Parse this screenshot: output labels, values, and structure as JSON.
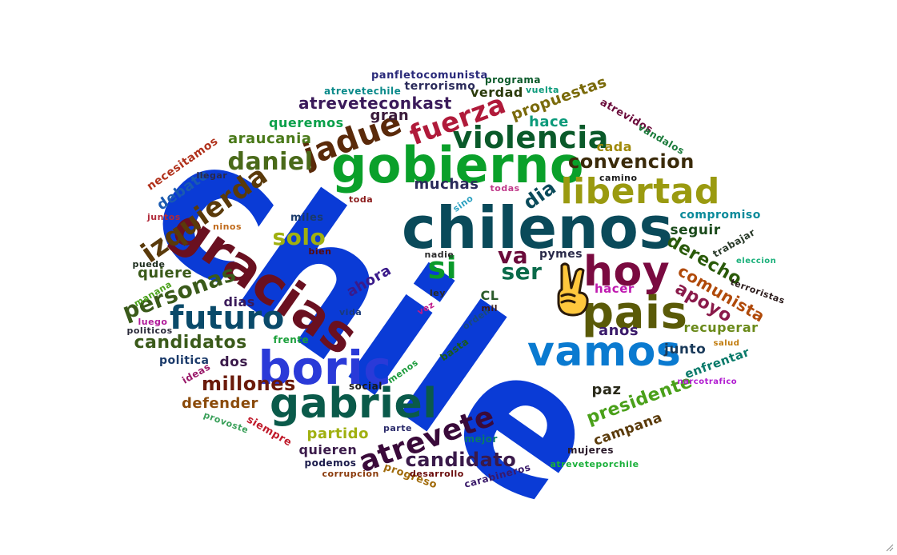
{
  "cloud": {
    "emoji_icon": "victory-hand-icon",
    "words": [
      {
        "text": "chile",
        "color": "#0a3bd6"
      },
      {
        "text": "chilenos",
        "color": "#0a4a5a"
      },
      {
        "text": "gobierno",
        "color": "#0aa02a"
      },
      {
        "text": "boric",
        "color": "#2a3ad8"
      },
      {
        "text": "gracias",
        "color": "#6a1020"
      },
      {
        "text": "pais",
        "color": "#5a5a08"
      },
      {
        "text": "vamos",
        "color": "#0a7ad0"
      },
      {
        "text": "gabriel",
        "color": "#0a5a4a"
      },
      {
        "text": "libertad",
        "color": "#9a9a10"
      },
      {
        "text": "hoy",
        "color": "#7a0a40"
      },
      {
        "text": "violencia",
        "color": "#0a5a2a"
      },
      {
        "text": "jadue",
        "color": "#5a2a0a"
      },
      {
        "text": "fuerza",
        "color": "#b01a3a"
      },
      {
        "text": "futuro",
        "color": "#0a4a6a"
      },
      {
        "text": "atrevete",
        "color": "#3a0a3a"
      },
      {
        "text": "izquierda",
        "color": "#5a3a0a"
      },
      {
        "text": "daniel",
        "color": "#4a6a1a"
      },
      {
        "text": "personas",
        "color": "#3a5a1a"
      },
      {
        "text": "convencion",
        "color": "#3a2a0a"
      },
      {
        "text": "solo",
        "color": "#a0b010"
      },
      {
        "text": "si",
        "color": "#0a9a2a"
      },
      {
        "text": "ser",
        "color": "#0a6a4a"
      },
      {
        "text": "va",
        "color": "#6a0a3a"
      },
      {
        "text": "dia",
        "color": "#0a4a5a"
      },
      {
        "text": "candidatos",
        "color": "#3a5a1a"
      },
      {
        "text": "millones",
        "color": "#6a1a0a"
      },
      {
        "text": "candidato",
        "color": "#3a1a4a"
      },
      {
        "text": "presidente",
        "color": "#4aa01a"
      },
      {
        "text": "apoyo",
        "color": "#8a1a4a"
      },
      {
        "text": "comunista",
        "color": "#b04a0a"
      },
      {
        "text": "derecho",
        "color": "#2a5a0a"
      },
      {
        "text": "atreveteconkast",
        "color": "#3a1a5a"
      },
      {
        "text": "propuestas",
        "color": "#7a6a0a"
      },
      {
        "text": "araucania",
        "color": "#4a7a1a"
      },
      {
        "text": "queremos",
        "color": "#0aa04a"
      },
      {
        "text": "gran",
        "color": "#3a1a3a"
      },
      {
        "text": "verdad",
        "color": "#2a3a0a"
      },
      {
        "text": "hace",
        "color": "#0a9a7a"
      },
      {
        "text": "cada",
        "color": "#a08a0a"
      },
      {
        "text": "debate",
        "color": "#1a5ab0"
      },
      {
        "text": "necesitamos",
        "color": "#b0301a"
      },
      {
        "text": "muchas",
        "color": "#2a2a5a"
      },
      {
        "text": "ahora",
        "color": "#3a1a8a"
      },
      {
        "text": "dias",
        "color": "#3a1a5a"
      },
      {
        "text": "quiere",
        "color": "#3a5a1a"
      },
      {
        "text": "dos",
        "color": "#3a1a4a"
      },
      {
        "text": "defender",
        "color": "#8a4a0a"
      },
      {
        "text": "partido",
        "color": "#a0b010"
      },
      {
        "text": "quieren",
        "color": "#3a1a4a"
      },
      {
        "text": "paz",
        "color": "#2a2a1a"
      },
      {
        "text": "campana",
        "color": "#5a3a0a"
      },
      {
        "text": "anos",
        "color": "#3a1a6a"
      },
      {
        "text": "junto",
        "color": "#1a3a5a"
      },
      {
        "text": "recuperar",
        "color": "#6a8a1a"
      },
      {
        "text": "enfrentar",
        "color": "#0a7a6a"
      },
      {
        "text": "seguir",
        "color": "#1a4a1a"
      },
      {
        "text": "compromiso",
        "color": "#0a8a9a"
      },
      {
        "text": "hacer",
        "color": "#c01ab0"
      },
      {
        "text": "pymes",
        "color": "#2a2a4a"
      },
      {
        "text": "CL",
        "color": "#2a5a2a"
      },
      {
        "text": "miles",
        "color": "#1a3a6a"
      },
      {
        "text": "politica",
        "color": "#1a3a6a"
      },
      {
        "text": "ideas",
        "color": "#9a1a6a"
      },
      {
        "text": "atrevetechile",
        "color": "#0a8a8a"
      },
      {
        "text": "terrorismo",
        "color": "#2a2a5a"
      },
      {
        "text": "panfletocomunista",
        "color": "#2a2a7a"
      },
      {
        "text": "programa",
        "color": "#0a5a2a"
      },
      {
        "text": "vuelta",
        "color": "#0a9a7a"
      },
      {
        "text": "atrevidos",
        "color": "#6a0a3a"
      },
      {
        "text": "vandalos",
        "color": "#1a7a3a"
      },
      {
        "text": "camino",
        "color": "#1a1a1a"
      },
      {
        "text": "llegar",
        "color": "#2a2a4a"
      },
      {
        "text": "toda",
        "color": "#8a1a1a"
      },
      {
        "text": "todas",
        "color": "#c03a8a"
      },
      {
        "text": "sino",
        "color": "#2aa0c0"
      },
      {
        "text": "juntos",
        "color": "#b02a3a"
      },
      {
        "text": "ninos",
        "color": "#c06a1a"
      },
      {
        "text": "bien",
        "color": "#5a0a0a"
      },
      {
        "text": "nadie",
        "color": "#2a2a2a"
      },
      {
        "text": "puede",
        "color": "#1a2a1a"
      },
      {
        "text": "manana",
        "color": "#4aa01a"
      },
      {
        "text": "luego",
        "color": "#b01a9a"
      },
      {
        "text": "politicos",
        "color": "#2a2a3a"
      },
      {
        "text": "ley",
        "color": "#2a2a2a"
      },
      {
        "text": "vez",
        "color": "#c01a8a"
      },
      {
        "text": "mil",
        "color": "#3a1a1a"
      },
      {
        "text": "vida",
        "color": "#1a3a7a"
      },
      {
        "text": "orden",
        "color": "#1a4a7a"
      },
      {
        "text": "basta",
        "color": "#1a5a1a"
      },
      {
        "text": "frente",
        "color": "#1aa03a"
      },
      {
        "text": "menos",
        "color": "#1a9a3a"
      },
      {
        "text": "social",
        "color": "#1a1a1a"
      },
      {
        "text": "parte",
        "color": "#2a2a6a"
      },
      {
        "text": "mejor",
        "color": "#0a7a6a"
      },
      {
        "text": "siempre",
        "color": "#c01a2a"
      },
      {
        "text": "provoste",
        "color": "#3aa05a"
      },
      {
        "text": "podemos",
        "color": "#1a1a4a"
      },
      {
        "text": "corrupcion",
        "color": "#8a3a0a"
      },
      {
        "text": "progreso",
        "color": "#a06a0a"
      },
      {
        "text": "desarrollo",
        "color": "#6a0a0a"
      },
      {
        "text": "carabineros",
        "color": "#3a1a6a"
      },
      {
        "text": "mujeres",
        "color": "#2a1a2a"
      },
      {
        "text": "atreveteporchile",
        "color": "#1ab03a"
      },
      {
        "text": "narcotrafico",
        "color": "#b01ad0"
      },
      {
        "text": "salud",
        "color": "#c07a0a"
      },
      {
        "text": "terroristas",
        "color": "#2a1a1a"
      },
      {
        "text": "eleccion",
        "color": "#1ab07a"
      },
      {
        "text": "trabajar",
        "color": "#2a3a2a"
      }
    ]
  }
}
